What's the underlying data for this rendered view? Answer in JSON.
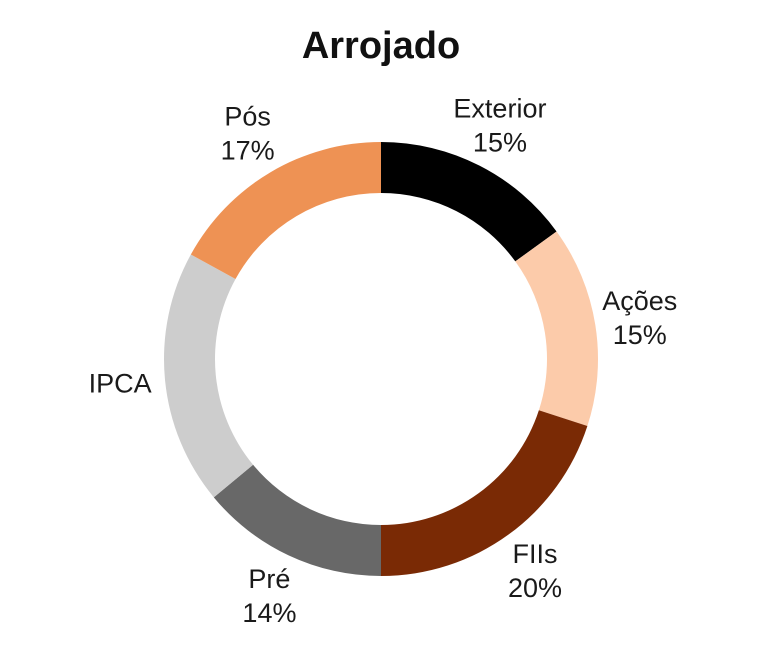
{
  "chart_data": {
    "type": "pie",
    "subtype": "donut",
    "title": "Arrojado",
    "unit": "%",
    "slices": [
      {
        "label": "Exterior",
        "value": 15,
        "value_label": "15%",
        "color": "#000000"
      },
      {
        "label": "Ações",
        "value": 15,
        "value_label": "15%",
        "color": "#FCCBAA"
      },
      {
        "label": "FIIs",
        "value": 20,
        "value_label": "20%",
        "color": "#7A2A05"
      },
      {
        "label": "Pré",
        "value": 14,
        "value_label": "14%",
        "color": "#686868"
      },
      {
        "label": "IPCA",
        "value": 19,
        "value_label": "",
        "color": "#CDCDCD"
      },
      {
        "label": "Pós",
        "value": 17,
        "value_label": "17%",
        "color": "#EE9254"
      }
    ]
  }
}
